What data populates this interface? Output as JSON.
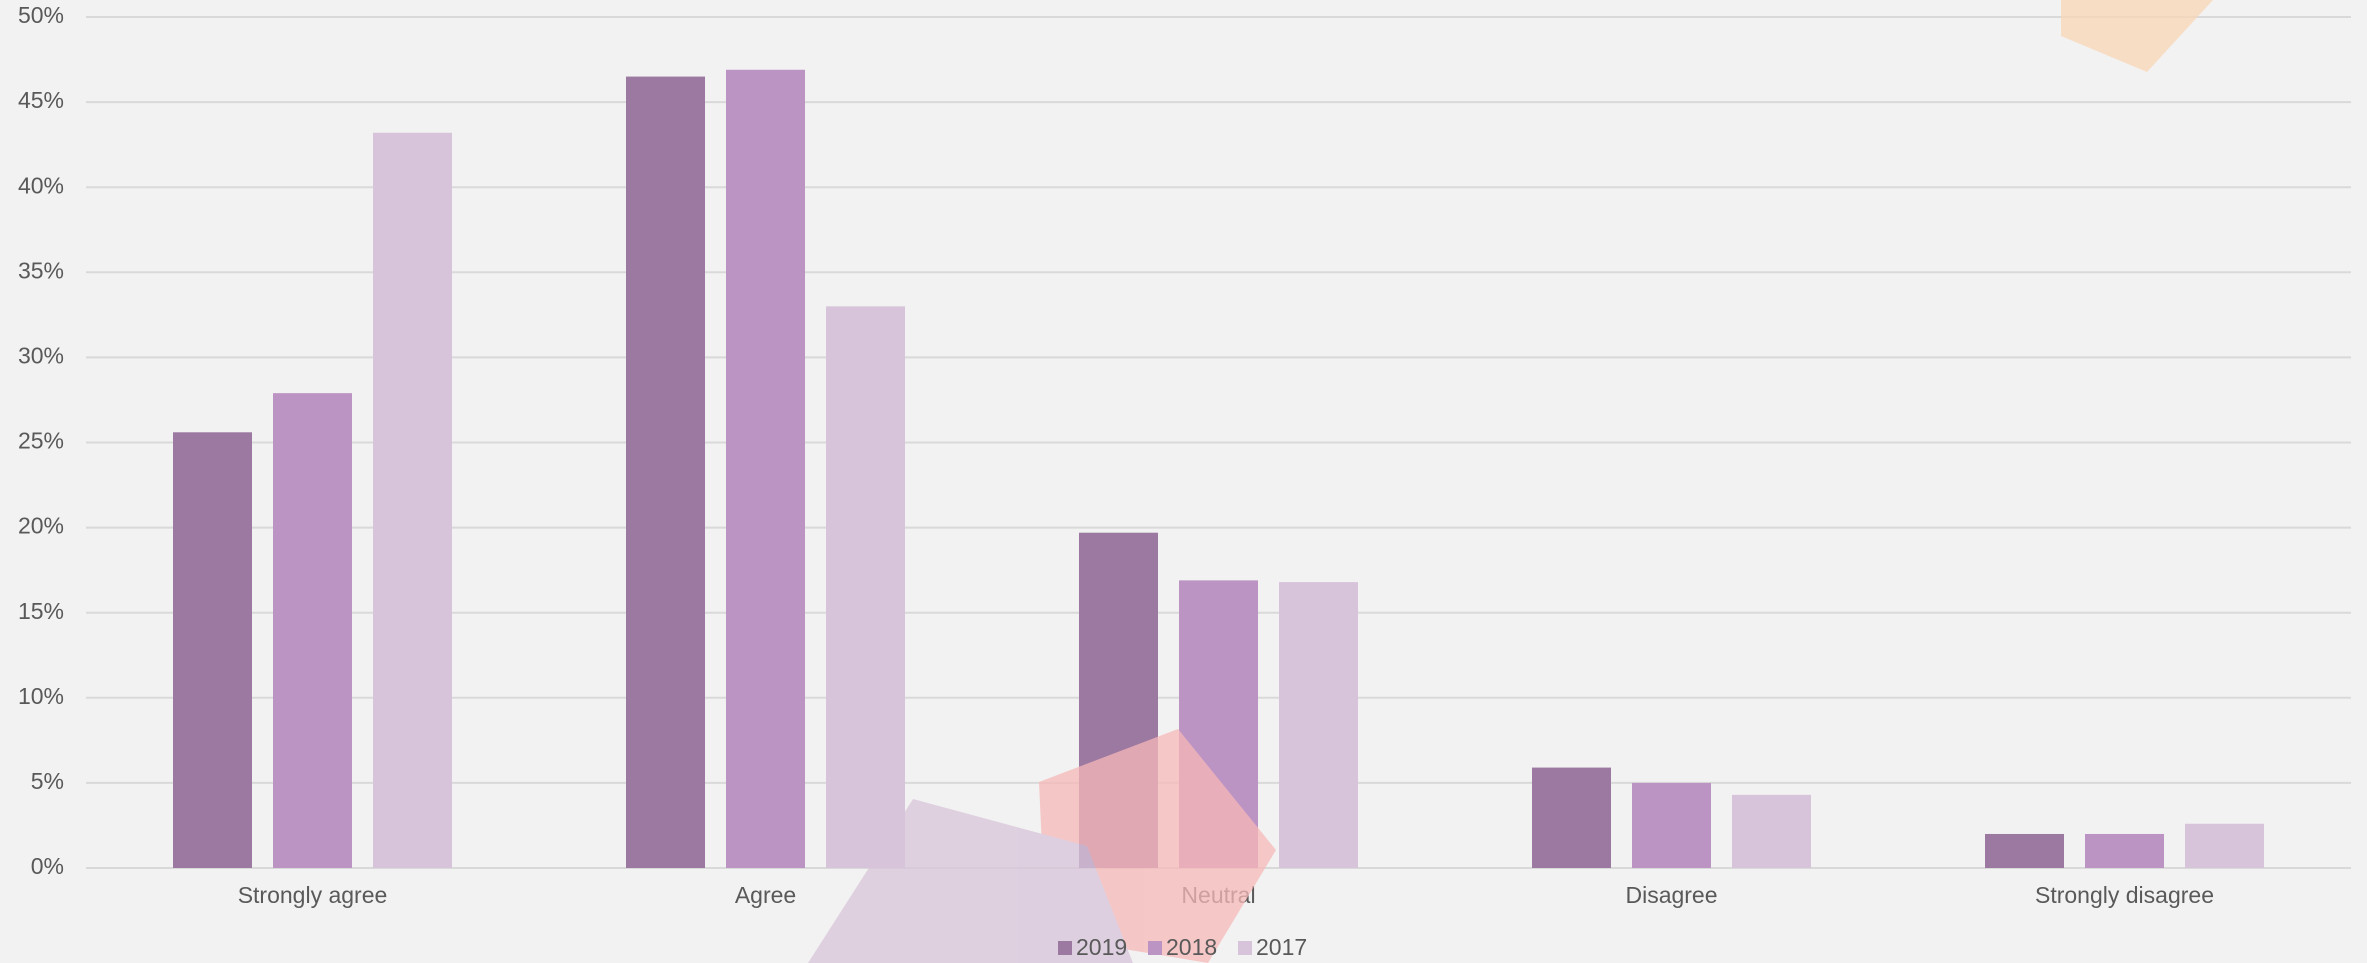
{
  "chart_data": {
    "type": "bar",
    "categories": [
      "Strongly agree",
      "Agree",
      "Neutral",
      "Disagree",
      "Strongly disagree"
    ],
    "series": [
      {
        "name": "2019",
        "color": "#9b79a0",
        "values": [
          25.6,
          46.5,
          19.7,
          5.9,
          2.0
        ]
      },
      {
        "name": "2018",
        "color": "#bc94c4",
        "values": [
          27.9,
          46.9,
          16.9,
          5.0,
          2.0
        ]
      },
      {
        "name": "2017",
        "color": "#d8c4da",
        "values": [
          43.2,
          33.0,
          16.8,
          4.3,
          2.6
        ]
      }
    ],
    "ylim": [
      0,
      50
    ],
    "yticks": [
      {
        "value": 0,
        "label": "0%"
      },
      {
        "value": 5,
        "label": "5%"
      },
      {
        "value": 10,
        "label": "10%"
      },
      {
        "value": 15,
        "label": "15%"
      },
      {
        "value": 20,
        "label": "20%"
      },
      {
        "value": 25,
        "label": "25%"
      },
      {
        "value": 30,
        "label": "30%"
      },
      {
        "value": 35,
        "label": "35%"
      },
      {
        "value": 40,
        "label": "40%"
      },
      {
        "value": 45,
        "label": "45%"
      },
      {
        "value": 50,
        "label": "50%"
      }
    ],
    "grid": true,
    "legend": "bottom"
  }
}
